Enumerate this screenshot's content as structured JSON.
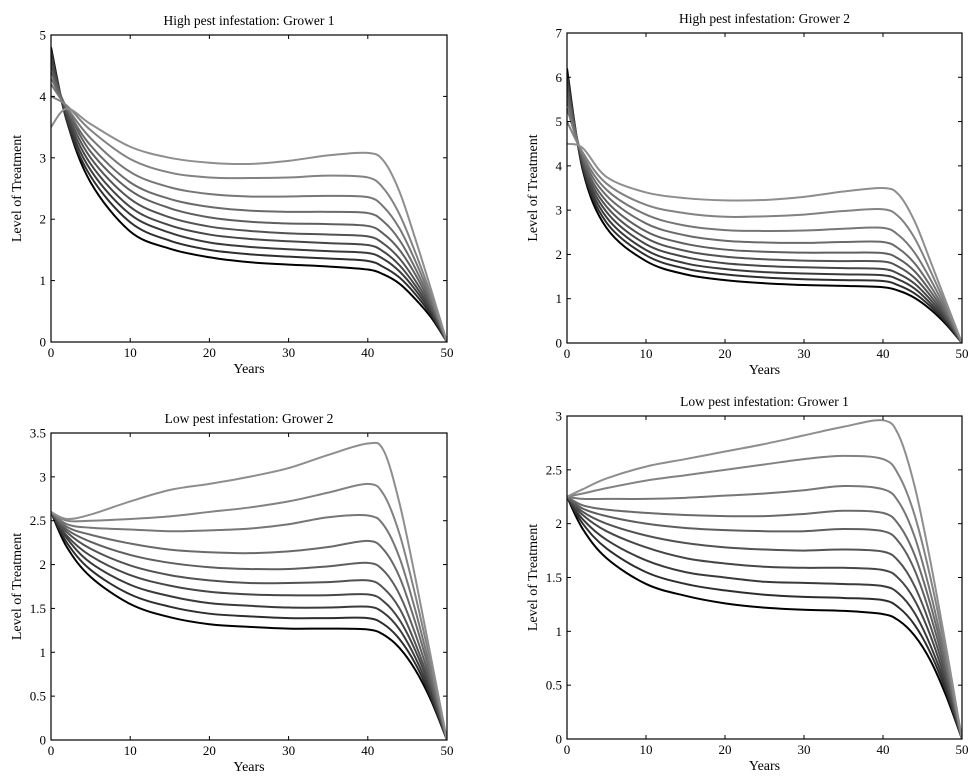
{
  "chart_data": [
    {
      "type": "line",
      "title": "High pest infestation: Grower 1",
      "xlabel": "Years",
      "ylabel": "Level of Treatment",
      "xlim": [
        0,
        50
      ],
      "ylim": [
        0,
        5
      ],
      "xticks": [
        0,
        10,
        20,
        30,
        40,
        50
      ],
      "yticks": [
        0,
        1,
        2,
        3,
        4,
        5
      ],
      "line_colors": [
        "#000000",
        "#2e2e2e",
        "#3a3a3a",
        "#464646",
        "#525252",
        "#5e5e5e",
        "#6a6a6a",
        "#767676",
        "#828282",
        "#8e8e8e"
      ],
      "x": [
        0,
        2,
        5,
        10,
        15,
        20,
        25,
        30,
        35,
        40,
        42,
        44,
        46,
        48,
        50
      ],
      "series": [
        {
          "values": [
            4.8,
            3.6,
            2.6,
            1.8,
            1.52,
            1.38,
            1.3,
            1.26,
            1.23,
            1.18,
            1.1,
            0.95,
            0.7,
            0.4,
            0.0
          ]
        },
        {
          "values": [
            4.75,
            3.6,
            2.7,
            1.95,
            1.65,
            1.5,
            1.43,
            1.39,
            1.36,
            1.32,
            1.22,
            1.05,
            0.78,
            0.44,
            0.0
          ]
        },
        {
          "values": [
            4.7,
            3.65,
            2.8,
            2.08,
            1.78,
            1.62,
            1.55,
            1.51,
            1.48,
            1.45,
            1.35,
            1.15,
            0.85,
            0.48,
            0.0
          ]
        },
        {
          "values": [
            4.6,
            3.7,
            2.9,
            2.2,
            1.9,
            1.75,
            1.68,
            1.64,
            1.61,
            1.58,
            1.47,
            1.25,
            0.92,
            0.52,
            0.0
          ]
        },
        {
          "values": [
            4.5,
            3.75,
            3.0,
            2.33,
            2.03,
            1.88,
            1.81,
            1.77,
            1.75,
            1.72,
            1.6,
            1.36,
            1.0,
            0.56,
            0.0
          ]
        },
        {
          "values": [
            4.4,
            3.8,
            3.1,
            2.47,
            2.18,
            2.03,
            1.96,
            1.93,
            1.92,
            1.89,
            1.76,
            1.5,
            1.1,
            0.6,
            0.0
          ]
        },
        {
          "values": [
            4.3,
            3.8,
            3.2,
            2.6,
            2.33,
            2.2,
            2.14,
            2.12,
            2.12,
            2.1,
            1.96,
            1.66,
            1.2,
            0.65,
            0.0
          ]
        },
        {
          "values": [
            4.2,
            3.82,
            3.32,
            2.77,
            2.52,
            2.41,
            2.37,
            2.37,
            2.38,
            2.36,
            2.2,
            1.85,
            1.32,
            0.7,
            0.0
          ]
        },
        {
          "values": [
            4.0,
            3.85,
            3.45,
            2.98,
            2.76,
            2.68,
            2.67,
            2.68,
            2.71,
            2.68,
            2.5,
            2.08,
            1.46,
            0.76,
            0.0
          ]
        },
        {
          "values": [
            3.5,
            3.8,
            3.55,
            3.18,
            3.0,
            2.92,
            2.9,
            2.95,
            3.04,
            3.08,
            2.95,
            2.45,
            1.68,
            0.85,
            0.0
          ]
        }
      ]
    },
    {
      "type": "line",
      "title": "High pest infestation: Grower 2",
      "xlabel": "Years",
      "ylabel": "Level of Treatment",
      "xlim": [
        0,
        50
      ],
      "ylim": [
        0,
        7
      ],
      "xticks": [
        0,
        10,
        20,
        30,
        40,
        50
      ],
      "yticks": [
        0,
        1,
        2,
        3,
        4,
        5,
        6,
        7
      ],
      "line_colors": [
        "#000000",
        "#2e2e2e",
        "#3a3a3a",
        "#464646",
        "#525252",
        "#5e5e5e",
        "#6a6a6a",
        "#767676",
        "#828282",
        "#8e8e8e"
      ],
      "x": [
        0,
        2,
        5,
        10,
        15,
        20,
        25,
        30,
        35,
        40,
        42,
        44,
        46,
        48,
        50
      ],
      "series": [
        {
          "values": [
            6.2,
            3.9,
            2.6,
            1.85,
            1.55,
            1.42,
            1.35,
            1.31,
            1.29,
            1.26,
            1.18,
            1.02,
            0.76,
            0.42,
            0.0
          ]
        },
        {
          "values": [
            6.1,
            3.95,
            2.72,
            1.98,
            1.68,
            1.55,
            1.48,
            1.44,
            1.42,
            1.4,
            1.3,
            1.12,
            0.83,
            0.46,
            0.0
          ]
        },
        {
          "values": [
            6.0,
            4.0,
            2.84,
            2.1,
            1.8,
            1.67,
            1.6,
            1.57,
            1.55,
            1.53,
            1.43,
            1.23,
            0.9,
            0.5,
            0.0
          ]
        },
        {
          "values": [
            5.9,
            4.05,
            2.96,
            2.23,
            1.94,
            1.8,
            1.74,
            1.71,
            1.69,
            1.67,
            1.56,
            1.34,
            0.98,
            0.54,
            0.0
          ]
        },
        {
          "values": [
            5.8,
            4.1,
            3.08,
            2.37,
            2.08,
            1.95,
            1.89,
            1.86,
            1.85,
            1.84,
            1.72,
            1.47,
            1.07,
            0.58,
            0.0
          ]
        },
        {
          "values": [
            5.7,
            4.15,
            3.2,
            2.52,
            2.24,
            2.11,
            2.06,
            2.04,
            2.04,
            2.03,
            1.9,
            1.62,
            1.17,
            0.63,
            0.0
          ]
        },
        {
          "values": [
            5.5,
            4.2,
            3.33,
            2.7,
            2.43,
            2.31,
            2.27,
            2.26,
            2.28,
            2.28,
            2.13,
            1.8,
            1.29,
            0.68,
            0.0
          ]
        },
        {
          "values": [
            5.3,
            4.25,
            3.46,
            2.9,
            2.65,
            2.55,
            2.53,
            2.54,
            2.58,
            2.6,
            2.43,
            2.04,
            1.44,
            0.75,
            0.0
          ]
        },
        {
          "values": [
            5.0,
            4.3,
            3.6,
            3.12,
            2.93,
            2.85,
            2.86,
            2.9,
            2.98,
            3.02,
            2.85,
            2.37,
            1.63,
            0.83,
            0.0
          ]
        },
        {
          "values": [
            4.5,
            4.4,
            3.75,
            3.4,
            3.27,
            3.22,
            3.23,
            3.3,
            3.42,
            3.5,
            3.35,
            2.75,
            1.85,
            0.92,
            0.0
          ]
        }
      ]
    },
    {
      "type": "line",
      "title": "Low pest infestation: Grower 2",
      "xlabel": "Years",
      "ylabel": "Level of Treatment",
      "xlim": [
        0,
        50
      ],
      "ylim": [
        0,
        3.5
      ],
      "xticks": [
        0,
        10,
        20,
        30,
        40,
        50
      ],
      "yticks": [
        0,
        0.5,
        1,
        1.5,
        2,
        2.5,
        3,
        3.5
      ],
      "line_colors": [
        "#000000",
        "#2e2e2e",
        "#3a3a3a",
        "#464646",
        "#525252",
        "#5e5e5e",
        "#6a6a6a",
        "#767676",
        "#828282",
        "#8e8e8e"
      ],
      "x": [
        0,
        2,
        5,
        10,
        15,
        20,
        25,
        30,
        35,
        40,
        42,
        44,
        46,
        48,
        50
      ],
      "series": [
        {
          "values": [
            2.6,
            2.2,
            1.86,
            1.55,
            1.4,
            1.32,
            1.29,
            1.27,
            1.27,
            1.26,
            1.2,
            1.05,
            0.8,
            0.45,
            0.0
          ]
        },
        {
          "values": [
            2.6,
            2.25,
            1.94,
            1.66,
            1.52,
            1.44,
            1.41,
            1.39,
            1.39,
            1.39,
            1.32,
            1.15,
            0.87,
            0.48,
            0.0
          ]
        },
        {
          "values": [
            2.6,
            2.3,
            2.02,
            1.77,
            1.64,
            1.56,
            1.53,
            1.51,
            1.51,
            1.52,
            1.45,
            1.26,
            0.94,
            0.52,
            0.0
          ]
        },
        {
          "values": [
            2.6,
            2.33,
            2.1,
            1.88,
            1.76,
            1.69,
            1.66,
            1.65,
            1.65,
            1.66,
            1.58,
            1.37,
            1.02,
            0.56,
            0.0
          ]
        },
        {
          "values": [
            2.6,
            2.37,
            2.18,
            1.99,
            1.88,
            1.82,
            1.79,
            1.79,
            1.8,
            1.82,
            1.73,
            1.5,
            1.1,
            0.6,
            0.0
          ]
        },
        {
          "values": [
            2.6,
            2.4,
            2.26,
            2.11,
            2.02,
            1.97,
            1.95,
            1.95,
            1.98,
            2.02,
            1.93,
            1.66,
            1.21,
            0.65,
            0.0
          ]
        },
        {
          "values": [
            2.6,
            2.43,
            2.34,
            2.24,
            2.17,
            2.14,
            2.13,
            2.15,
            2.2,
            2.27,
            2.17,
            1.86,
            1.34,
            0.71,
            0.0
          ]
        },
        {
          "values": [
            2.6,
            2.46,
            2.42,
            2.4,
            2.38,
            2.39,
            2.41,
            2.46,
            2.54,
            2.56,
            2.45,
            2.08,
            1.48,
            0.77,
            0.0
          ]
        },
        {
          "values": [
            2.6,
            2.5,
            2.5,
            2.52,
            2.55,
            2.6,
            2.65,
            2.72,
            2.82,
            2.92,
            2.8,
            2.35,
            1.65,
            0.85,
            0.0
          ]
        },
        {
          "values": [
            2.6,
            2.52,
            2.57,
            2.72,
            2.85,
            2.92,
            3.0,
            3.1,
            3.25,
            3.38,
            3.3,
            2.7,
            1.85,
            0.93,
            0.0
          ]
        }
      ]
    },
    {
      "type": "line",
      "title": "Low pest infestation: Grower 1",
      "xlabel": "Years",
      "ylabel": "Level of Treatment",
      "xlim": [
        0,
        50
      ],
      "ylim": [
        0,
        3
      ],
      "xticks": [
        0,
        10,
        20,
        30,
        40,
        50
      ],
      "yticks": [
        0,
        0.5,
        1,
        1.5,
        2,
        2.5,
        3
      ],
      "line_colors": [
        "#000000",
        "#2e2e2e",
        "#3a3a3a",
        "#464646",
        "#525252",
        "#5e5e5e",
        "#6a6a6a",
        "#767676",
        "#828282",
        "#8e8e8e"
      ],
      "x": [
        0,
        2,
        5,
        10,
        15,
        20,
        25,
        30,
        35,
        40,
        42,
        44,
        46,
        48,
        50
      ],
      "series": [
        {
          "values": [
            2.25,
            1.95,
            1.68,
            1.44,
            1.33,
            1.26,
            1.22,
            1.2,
            1.19,
            1.16,
            1.1,
            0.96,
            0.73,
            0.4,
            0.0
          ]
        },
        {
          "values": [
            2.25,
            2.0,
            1.77,
            1.55,
            1.44,
            1.38,
            1.34,
            1.32,
            1.31,
            1.29,
            1.22,
            1.06,
            0.8,
            0.44,
            0.0
          ]
        },
        {
          "values": [
            2.25,
            2.04,
            1.85,
            1.66,
            1.55,
            1.5,
            1.46,
            1.45,
            1.44,
            1.42,
            1.35,
            1.17,
            0.87,
            0.48,
            0.0
          ]
        },
        {
          "values": [
            2.25,
            2.08,
            1.93,
            1.78,
            1.68,
            1.63,
            1.6,
            1.59,
            1.59,
            1.57,
            1.49,
            1.29,
            0.96,
            0.52,
            0.0
          ]
        },
        {
          "values": [
            2.25,
            2.11,
            2.0,
            1.89,
            1.82,
            1.78,
            1.76,
            1.75,
            1.76,
            1.74,
            1.65,
            1.42,
            1.05,
            0.57,
            0.0
          ]
        },
        {
          "values": [
            2.25,
            2.14,
            2.07,
            2.0,
            1.96,
            1.94,
            1.93,
            1.93,
            1.95,
            1.93,
            1.83,
            1.57,
            1.15,
            0.62,
            0.0
          ]
        },
        {
          "values": [
            2.25,
            2.17,
            2.13,
            2.1,
            2.08,
            2.07,
            2.07,
            2.09,
            2.12,
            2.1,
            1.99,
            1.71,
            1.25,
            0.67,
            0.0
          ]
        },
        {
          "values": [
            2.25,
            2.23,
            2.23,
            2.23,
            2.24,
            2.26,
            2.28,
            2.31,
            2.35,
            2.32,
            2.2,
            1.88,
            1.36,
            0.72,
            0.0
          ]
        },
        {
          "values": [
            2.25,
            2.28,
            2.33,
            2.4,
            2.45,
            2.5,
            2.55,
            2.6,
            2.63,
            2.6,
            2.45,
            2.08,
            1.5,
            0.79,
            0.0
          ]
        },
        {
          "values": [
            2.25,
            2.32,
            2.42,
            2.53,
            2.6,
            2.67,
            2.74,
            2.82,
            2.9,
            2.96,
            2.82,
            2.35,
            1.65,
            0.85,
            0.0
          ]
        }
      ]
    }
  ]
}
